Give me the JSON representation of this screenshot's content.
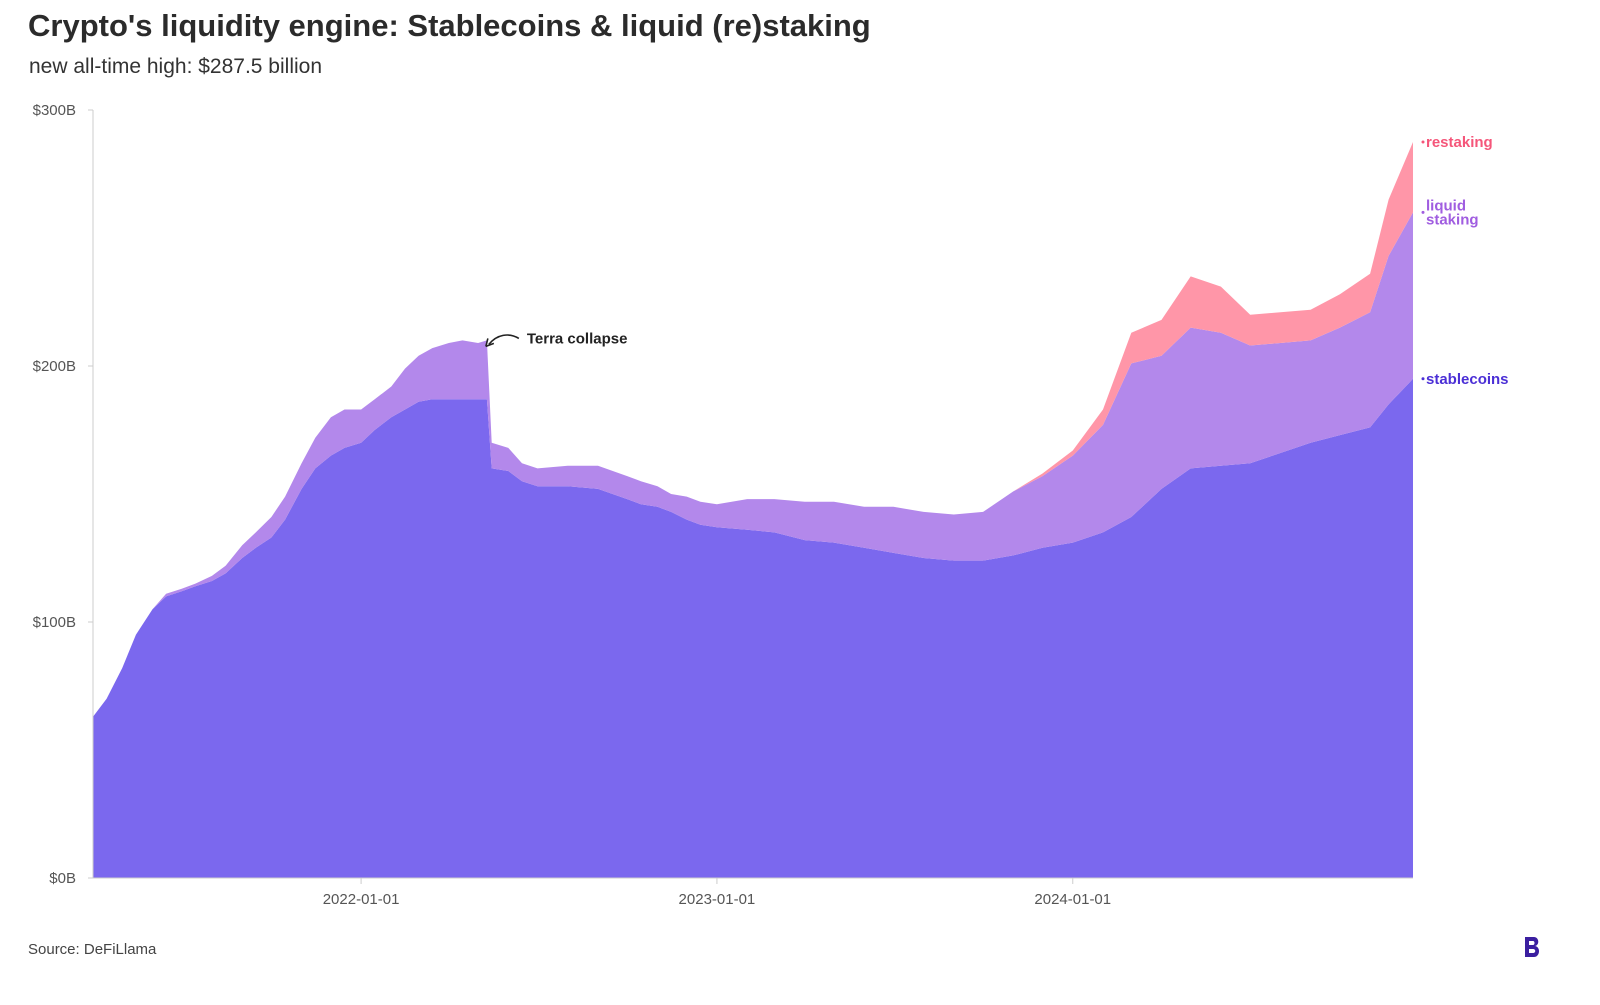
{
  "title": "Crypto's liquidity engine: Stablecoins & liquid (re)staking",
  "subtitle": "new all-time high: $287.5 billion",
  "source": "Source: DeFiLlama",
  "colors": {
    "stablecoins": "#7b68ee",
    "liquid_staking": "#b388eb",
    "restaking": "#ff96a8",
    "label_stablecoins": "#4b2fd6",
    "label_liquid": "#a05de0",
    "label_restaking": "#f5567a",
    "axis": "#cccccc",
    "logo": "#3b1fa0"
  },
  "icons": {
    "logo": "brand-logo-icon",
    "arrow": "curved-arrow-icon"
  },
  "chart_data": {
    "type": "area",
    "stacked": true,
    "title": "Crypto's liquidity engine: Stablecoins & liquid (re)staking",
    "xlabel": "",
    "ylabel": "",
    "x_start": "2021-04-01",
    "x_end": "2024-12-15",
    "ylim": [
      0,
      300
    ],
    "y_ticks": [
      0,
      100,
      200,
      300
    ],
    "y_tick_labels": [
      "$0B",
      "$100B",
      "$200B",
      "$300B"
    ],
    "x_ticks": [
      "2022-01-01",
      "2023-01-01",
      "2024-01-01"
    ],
    "grid": false,
    "series": [
      {
        "name": "stablecoins",
        "label": "stablecoins",
        "points": [
          [
            "2021-04-01",
            63
          ],
          [
            "2021-04-15",
            70
          ],
          [
            "2021-05-01",
            82
          ],
          [
            "2021-05-15",
            95
          ],
          [
            "2021-06-01",
            105
          ],
          [
            "2021-06-15",
            110
          ],
          [
            "2021-07-01",
            112
          ],
          [
            "2021-07-15",
            114
          ],
          [
            "2021-08-01",
            116
          ],
          [
            "2021-08-15",
            119
          ],
          [
            "2021-09-01",
            125
          ],
          [
            "2021-09-15",
            129
          ],
          [
            "2021-10-01",
            133
          ],
          [
            "2021-10-15",
            140
          ],
          [
            "2021-11-01",
            152
          ],
          [
            "2021-11-15",
            160
          ],
          [
            "2021-12-01",
            165
          ],
          [
            "2021-12-15",
            168
          ],
          [
            "2022-01-01",
            170
          ],
          [
            "2022-01-15",
            175
          ],
          [
            "2022-02-01",
            180
          ],
          [
            "2022-02-15",
            183
          ],
          [
            "2022-03-01",
            186
          ],
          [
            "2022-03-15",
            187
          ],
          [
            "2022-04-01",
            187
          ],
          [
            "2022-04-15",
            187
          ],
          [
            "2022-05-01",
            187
          ],
          [
            "2022-05-10",
            187
          ],
          [
            "2022-05-15",
            160
          ],
          [
            "2022-06-01",
            159
          ],
          [
            "2022-06-15",
            155
          ],
          [
            "2022-07-01",
            153
          ],
          [
            "2022-08-01",
            153
          ],
          [
            "2022-09-01",
            152
          ],
          [
            "2022-10-01",
            148
          ],
          [
            "2022-10-15",
            146
          ],
          [
            "2022-11-01",
            145
          ],
          [
            "2022-11-15",
            143
          ],
          [
            "2022-12-01",
            140
          ],
          [
            "2022-12-15",
            138
          ],
          [
            "2023-01-01",
            137
          ],
          [
            "2023-02-01",
            136
          ],
          [
            "2023-03-01",
            135
          ],
          [
            "2023-04-01",
            132
          ],
          [
            "2023-05-01",
            131
          ],
          [
            "2023-06-01",
            129
          ],
          [
            "2023-07-01",
            127
          ],
          [
            "2023-08-01",
            125
          ],
          [
            "2023-09-01",
            124
          ],
          [
            "2023-10-01",
            124
          ],
          [
            "2023-11-01",
            126
          ],
          [
            "2023-12-01",
            129
          ],
          [
            "2024-01-01",
            131
          ],
          [
            "2024-02-01",
            135
          ],
          [
            "2024-03-01",
            141
          ],
          [
            "2024-04-01",
            152
          ],
          [
            "2024-05-01",
            160
          ],
          [
            "2024-06-01",
            161
          ],
          [
            "2024-07-01",
            162
          ],
          [
            "2024-08-01",
            166
          ],
          [
            "2024-09-01",
            170
          ],
          [
            "2024-10-01",
            173
          ],
          [
            "2024-11-01",
            176
          ],
          [
            "2024-11-20",
            185
          ],
          [
            "2024-12-15",
            195
          ]
        ]
      },
      {
        "name": "liquid staking",
        "label": "liquid\nstaking",
        "points": [
          [
            "2021-04-01",
            0
          ],
          [
            "2021-04-15",
            0
          ],
          [
            "2021-05-01",
            0
          ],
          [
            "2021-05-15",
            0
          ],
          [
            "2021-06-01",
            0
          ],
          [
            "2021-06-15",
            1
          ],
          [
            "2021-07-01",
            1
          ],
          [
            "2021-07-15",
            1
          ],
          [
            "2021-08-01",
            2
          ],
          [
            "2021-08-15",
            3
          ],
          [
            "2021-09-01",
            5
          ],
          [
            "2021-09-15",
            6
          ],
          [
            "2021-10-01",
            8
          ],
          [
            "2021-10-15",
            9
          ],
          [
            "2021-11-01",
            10
          ],
          [
            "2021-11-15",
            12
          ],
          [
            "2021-12-01",
            15
          ],
          [
            "2021-12-15",
            15
          ],
          [
            "2022-01-01",
            13
          ],
          [
            "2022-01-15",
            12
          ],
          [
            "2022-02-01",
            12
          ],
          [
            "2022-02-15",
            16
          ],
          [
            "2022-03-01",
            18
          ],
          [
            "2022-03-15",
            20
          ],
          [
            "2022-04-01",
            22
          ],
          [
            "2022-04-15",
            23
          ],
          [
            "2022-05-01",
            22
          ],
          [
            "2022-05-10",
            23
          ],
          [
            "2022-05-15",
            10
          ],
          [
            "2022-06-01",
            9
          ],
          [
            "2022-06-15",
            7
          ],
          [
            "2022-07-01",
            7
          ],
          [
            "2022-08-01",
            8
          ],
          [
            "2022-09-01",
            9
          ],
          [
            "2022-10-01",
            9
          ],
          [
            "2022-10-15",
            9
          ],
          [
            "2022-11-01",
            8
          ],
          [
            "2022-11-15",
            7
          ],
          [
            "2022-12-01",
            9
          ],
          [
            "2022-12-15",
            9
          ],
          [
            "2023-01-01",
            9
          ],
          [
            "2023-02-01",
            12
          ],
          [
            "2023-03-01",
            13
          ],
          [
            "2023-04-01",
            15
          ],
          [
            "2023-05-01",
            16
          ],
          [
            "2023-06-01",
            16
          ],
          [
            "2023-07-01",
            18
          ],
          [
            "2023-08-01",
            18
          ],
          [
            "2023-09-01",
            18
          ],
          [
            "2023-10-01",
            19
          ],
          [
            "2023-11-01",
            25
          ],
          [
            "2023-12-01",
            28
          ],
          [
            "2024-01-01",
            34
          ],
          [
            "2024-02-01",
            42
          ],
          [
            "2024-03-01",
            60
          ],
          [
            "2024-04-01",
            52
          ],
          [
            "2024-05-01",
            55
          ],
          [
            "2024-06-01",
            52
          ],
          [
            "2024-07-01",
            46
          ],
          [
            "2024-08-01",
            43
          ],
          [
            "2024-09-01",
            40
          ],
          [
            "2024-10-01",
            42
          ],
          [
            "2024-11-01",
            45
          ],
          [
            "2024-11-20",
            58
          ],
          [
            "2024-12-15",
            65
          ]
        ]
      },
      {
        "name": "restaking",
        "label": "restaking",
        "points": [
          [
            "2021-04-01",
            0
          ],
          [
            "2021-04-15",
            0
          ],
          [
            "2021-05-01",
            0
          ],
          [
            "2021-05-15",
            0
          ],
          [
            "2021-06-01",
            0
          ],
          [
            "2021-06-15",
            0
          ],
          [
            "2021-07-01",
            0
          ],
          [
            "2021-07-15",
            0
          ],
          [
            "2021-08-01",
            0
          ],
          [
            "2021-08-15",
            0
          ],
          [
            "2021-09-01",
            0
          ],
          [
            "2021-09-15",
            0
          ],
          [
            "2021-10-01",
            0
          ],
          [
            "2021-10-15",
            0
          ],
          [
            "2021-11-01",
            0
          ],
          [
            "2021-11-15",
            0
          ],
          [
            "2021-12-01",
            0
          ],
          [
            "2021-12-15",
            0
          ],
          [
            "2022-01-01",
            0
          ],
          [
            "2022-01-15",
            0
          ],
          [
            "2022-02-01",
            0
          ],
          [
            "2022-02-15",
            0
          ],
          [
            "2022-03-01",
            0
          ],
          [
            "2022-03-15",
            0
          ],
          [
            "2022-04-01",
            0
          ],
          [
            "2022-04-15",
            0
          ],
          [
            "2022-05-01",
            0
          ],
          [
            "2022-05-10",
            0
          ],
          [
            "2022-05-15",
            0
          ],
          [
            "2022-06-01",
            0
          ],
          [
            "2022-06-15",
            0
          ],
          [
            "2022-07-01",
            0
          ],
          [
            "2022-08-01",
            0
          ],
          [
            "2022-09-01",
            0
          ],
          [
            "2022-10-01",
            0
          ],
          [
            "2022-10-15",
            0
          ],
          [
            "2022-11-01",
            0
          ],
          [
            "2022-11-15",
            0
          ],
          [
            "2022-12-01",
            0
          ],
          [
            "2022-12-15",
            0
          ],
          [
            "2023-01-01",
            0
          ],
          [
            "2023-02-01",
            0
          ],
          [
            "2023-03-01",
            0
          ],
          [
            "2023-04-01",
            0
          ],
          [
            "2023-05-01",
            0
          ],
          [
            "2023-06-01",
            0
          ],
          [
            "2023-07-01",
            0
          ],
          [
            "2023-08-01",
            0
          ],
          [
            "2023-09-01",
            0
          ],
          [
            "2023-10-01",
            0
          ],
          [
            "2023-11-01",
            0
          ],
          [
            "2023-12-01",
            1
          ],
          [
            "2024-01-01",
            2
          ],
          [
            "2024-02-01",
            6
          ],
          [
            "2024-03-01",
            12
          ],
          [
            "2024-04-01",
            14
          ],
          [
            "2024-05-01",
            20
          ],
          [
            "2024-06-01",
            18
          ],
          [
            "2024-07-01",
            12
          ],
          [
            "2024-08-01",
            12
          ],
          [
            "2024-09-01",
            12
          ],
          [
            "2024-10-01",
            13
          ],
          [
            "2024-11-01",
            15
          ],
          [
            "2024-11-20",
            22
          ],
          [
            "2024-12-15",
            27.5
          ]
        ]
      }
    ],
    "annotations": [
      {
        "text": "Terra collapse",
        "x": "2022-05-10",
        "y": 210
      }
    ]
  }
}
